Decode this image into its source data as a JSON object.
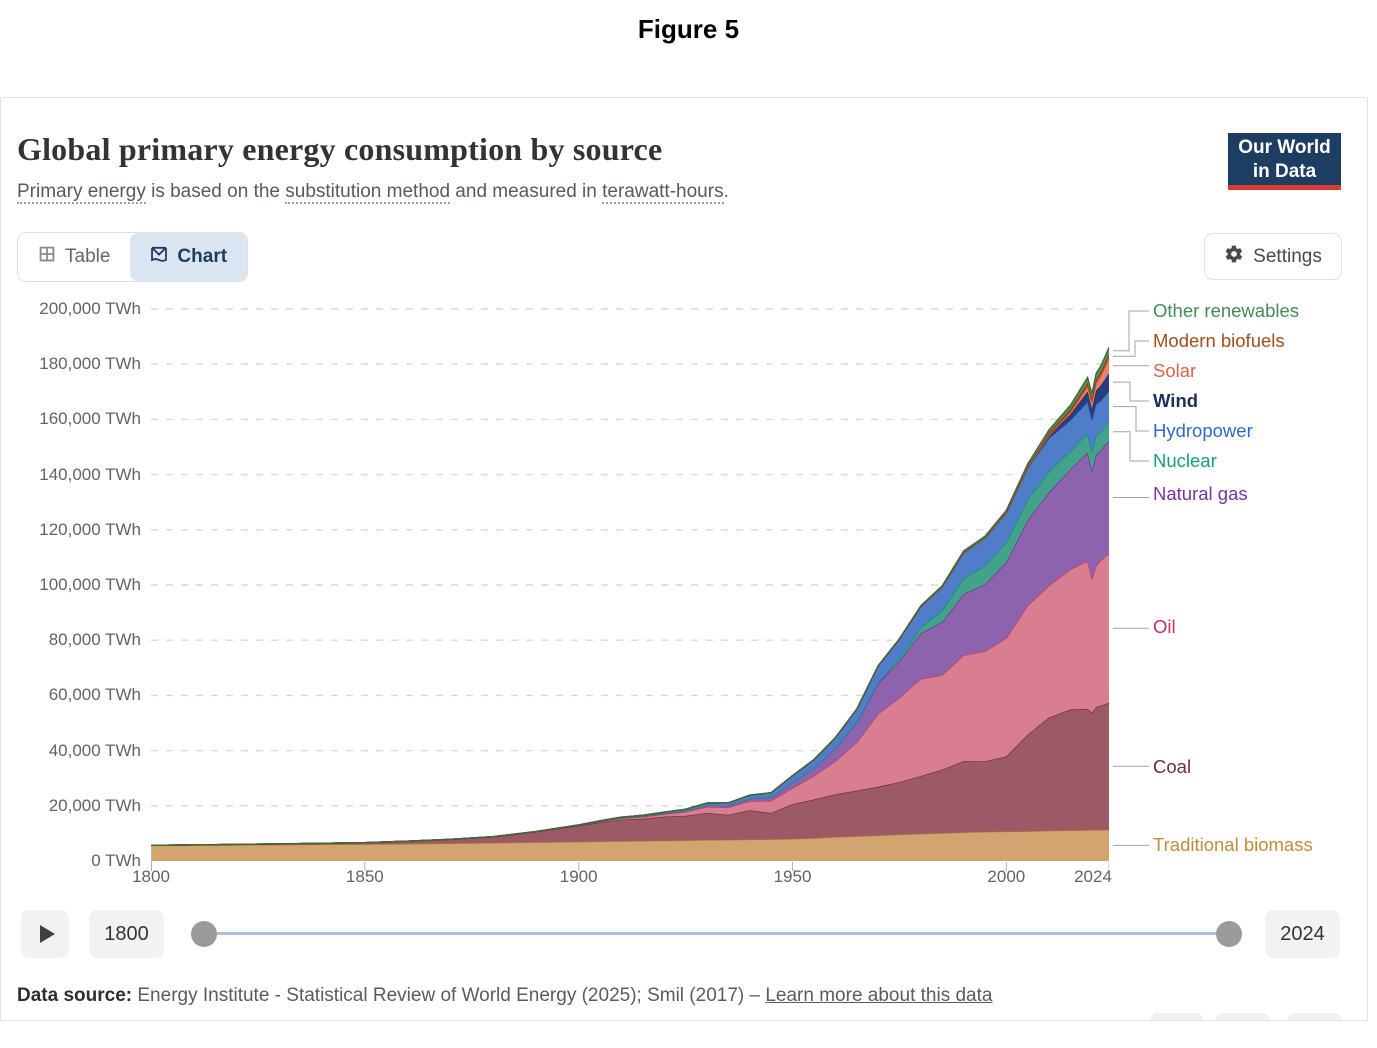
{
  "figure_label": "Figure 5",
  "header": {
    "title": "Global primary energy consumption by source",
    "subtitle_parts": [
      {
        "text": "Primary energy",
        "underline": true
      },
      {
        "text": " is based on the ",
        "underline": false
      },
      {
        "text": "substitution method",
        "underline": true
      },
      {
        "text": " and measured in ",
        "underline": false
      },
      {
        "text": "terawatt-hours",
        "underline": true
      },
      {
        "text": ".",
        "underline": false
      }
    ]
  },
  "logo": {
    "line1": "Our World",
    "line2": "in Data",
    "bg": "#1d3d63",
    "accent": "#dc3b33"
  },
  "tabs": [
    {
      "label": "Table",
      "active": false
    },
    {
      "label": "Chart",
      "active": true
    }
  ],
  "settings": {
    "label": "Settings"
  },
  "chart_data": {
    "type": "area",
    "stacked": true,
    "title": "Global primary energy consumption by source",
    "unit": "TWh",
    "xlim": [
      1800,
      2024
    ],
    "ylim": [
      0,
      200000
    ],
    "grid": "dashed-horizontal",
    "legend_position": "right",
    "x_ticks": [
      1800,
      1850,
      1900,
      1950,
      2000,
      2024
    ],
    "y_ticks": [
      {
        "value": 0,
        "label": "0 TWh"
      },
      {
        "value": 20000,
        "label": "20,000 TWh"
      },
      {
        "value": 40000,
        "label": "40,000 TWh"
      },
      {
        "value": 60000,
        "label": "60,000 TWh"
      },
      {
        "value": 80000,
        "label": "80,000 TWh"
      },
      {
        "value": 100000,
        "label": "100,000 TWh"
      },
      {
        "value": 120000,
        "label": "120,000 TWh"
      },
      {
        "value": 140000,
        "label": "140,000 TWh"
      },
      {
        "value": 160000,
        "label": "160,000 TWh"
      },
      {
        "value": 180000,
        "label": "180,000 TWh"
      },
      {
        "value": 200000,
        "label": "200,000 TWh"
      }
    ],
    "x": [
      1800,
      1810,
      1820,
      1830,
      1840,
      1850,
      1860,
      1870,
      1880,
      1890,
      1900,
      1905,
      1910,
      1915,
      1920,
      1925,
      1930,
      1935,
      1940,
      1945,
      1950,
      1955,
      1960,
      1965,
      1970,
      1975,
      1980,
      1985,
      1990,
      1995,
      2000,
      2005,
      2010,
      2015,
      2019,
      2020,
      2021,
      2022,
      2023,
      2024
    ],
    "series": [
      {
        "name": "Traditional biomass",
        "label_color": "#bf8c3e",
        "fill": "#d2a46f",
        "line": "#a87a3c",
        "values": [
          5600,
          5700,
          5800,
          5900,
          6000,
          6100,
          6250,
          6400,
          6600,
          6800,
          7000,
          7100,
          7200,
          7300,
          7400,
          7500,
          7600,
          7700,
          7800,
          7900,
          8000,
          8300,
          8700,
          9000,
          9300,
          9600,
          9900,
          10100,
          10400,
          10600,
          10700,
          10800,
          11000,
          11100,
          11200,
          11300,
          11300,
          11300,
          11300,
          11300
        ]
      },
      {
        "name": "Coal",
        "label_color": "#6f2a3e",
        "fill": "#9c5a66",
        "line": "#6f2a3e",
        "values": [
          100,
          140,
          200,
          290,
          400,
          570,
          900,
          1400,
          2100,
          3700,
          5700,
          6900,
          7800,
          8000,
          8700,
          8900,
          9800,
          9000,
          10600,
          9500,
          12600,
          14000,
          15500,
          16500,
          17600,
          19000,
          20900,
          23000,
          25800,
          25500,
          27200,
          35000,
          41000,
          43800,
          43900,
          42400,
          44500,
          44900,
          45500,
          46000
        ]
      },
      {
        "name": "Oil",
        "label_color": "#c23260",
        "fill": "#d97d91",
        "line": "#c23a61",
        "values": [
          0,
          0,
          0,
          0,
          0,
          0,
          10,
          30,
          60,
          110,
          180,
          300,
          500,
          700,
          900,
          1400,
          2200,
          2700,
          3300,
          4400,
          5800,
          8500,
          12000,
          17500,
          26400,
          30600,
          35200,
          34300,
          38400,
          39900,
          42900,
          46800,
          47800,
          50800,
          53600,
          48700,
          51200,
          52500,
          53500,
          54000
        ]
      },
      {
        "name": "Natural gas",
        "label_color": "#7b32a0",
        "fill": "#8e63ae",
        "line": "#6d2d93",
        "values": [
          0,
          0,
          0,
          0,
          0,
          0,
          0,
          10,
          30,
          50,
          64,
          100,
          150,
          200,
          230,
          350,
          600,
          700,
          880,
          1300,
          2000,
          2900,
          4700,
          7100,
          11000,
          13200,
          16500,
          19200,
          22100,
          24300,
          27500,
          30800,
          33900,
          36200,
          39300,
          38900,
          40400,
          39900,
          40300,
          40800
        ]
      },
      {
        "name": "Nuclear",
        "label_color": "#15a078",
        "fill": "#43a28a",
        "line": "#0d8f6c",
        "values": [
          0,
          0,
          0,
          0,
          0,
          0,
          0,
          0,
          0,
          0,
          0,
          0,
          0,
          0,
          0,
          0,
          0,
          0,
          0,
          0,
          0,
          5,
          20,
          70,
          220,
          1000,
          2000,
          4200,
          5700,
          6600,
          7300,
          7600,
          7400,
          6700,
          7000,
          6800,
          7000,
          6700,
          6800,
          6900
        ]
      },
      {
        "name": "Hydropower",
        "label_color": "#2e6bc7",
        "fill": "#4f7dca",
        "line": "#2c5fb5",
        "values": [
          0,
          0,
          0,
          0,
          0,
          0,
          0,
          5,
          10,
          30,
          120,
          180,
          250,
          350,
          450,
          600,
          800,
          1000,
          1300,
          1600,
          2500,
          3000,
          3700,
          4800,
          6100,
          7000,
          7700,
          8500,
          9300,
          10000,
          10500,
          11300,
          12100,
          11100,
          11400,
          11600,
          11300,
          11300,
          11000,
          11300
        ]
      },
      {
        "name": "Wind",
        "label_color": "#1f2e5e",
        "fill": "#2b3d7f",
        "line": "#1a2a5e",
        "values": [
          0,
          0,
          0,
          0,
          0,
          0,
          0,
          0,
          0,
          0,
          0,
          0,
          0,
          0,
          0,
          0,
          0,
          0,
          0,
          0,
          0,
          0,
          0,
          0,
          0,
          0,
          0,
          0,
          10,
          20,
          90,
          280,
          900,
          2200,
          3700,
          4200,
          4800,
          5500,
          6000,
          6400
        ]
      },
      {
        "name": "Solar",
        "label_color": "#dd6246",
        "fill": "#e8826d",
        "line": "#d8573d",
        "values": [
          0,
          0,
          0,
          0,
          0,
          0,
          0,
          0,
          0,
          0,
          0,
          0,
          0,
          0,
          0,
          0,
          0,
          0,
          0,
          0,
          0,
          0,
          0,
          0,
          0,
          0,
          0,
          0,
          0,
          0,
          3,
          10,
          90,
          670,
          1800,
          2200,
          2700,
          3400,
          4300,
          5500
        ]
      },
      {
        "name": "Modern biofuels",
        "label_color": "#a34d1c",
        "fill": "#a4542f",
        "line": "#8a3a10",
        "values": [
          0,
          0,
          0,
          0,
          0,
          0,
          0,
          0,
          0,
          0,
          0,
          0,
          0,
          0,
          0,
          0,
          0,
          0,
          0,
          0,
          0,
          0,
          0,
          0,
          0,
          0,
          50,
          90,
          130,
          160,
          250,
          420,
          1000,
          1100,
          1300,
          1200,
          1300,
          1350,
          1400,
          1400
        ]
      },
      {
        "name": "Other renewables",
        "label_color": "#458a52",
        "fill": "#5c8a50",
        "line": "#3a6b37",
        "values": [
          0,
          0,
          0,
          0,
          0,
          0,
          0,
          0,
          0,
          0,
          0,
          0,
          0,
          0,
          0,
          0,
          0,
          0,
          0,
          0,
          50,
          60,
          80,
          100,
          130,
          180,
          250,
          350,
          500,
          600,
          700,
          850,
          1100,
          1500,
          2000,
          2100,
          2200,
          2300,
          2400,
          2500
        ]
      }
    ]
  },
  "timeline": {
    "start_year": "1800",
    "end_year": "2024"
  },
  "footer": {
    "prefix": "Data source:",
    "source": " Energy Institute - Statistical Review of World Energy (2025); Smil (2017)",
    "separator": " – ",
    "link": "Learn more about this data"
  }
}
